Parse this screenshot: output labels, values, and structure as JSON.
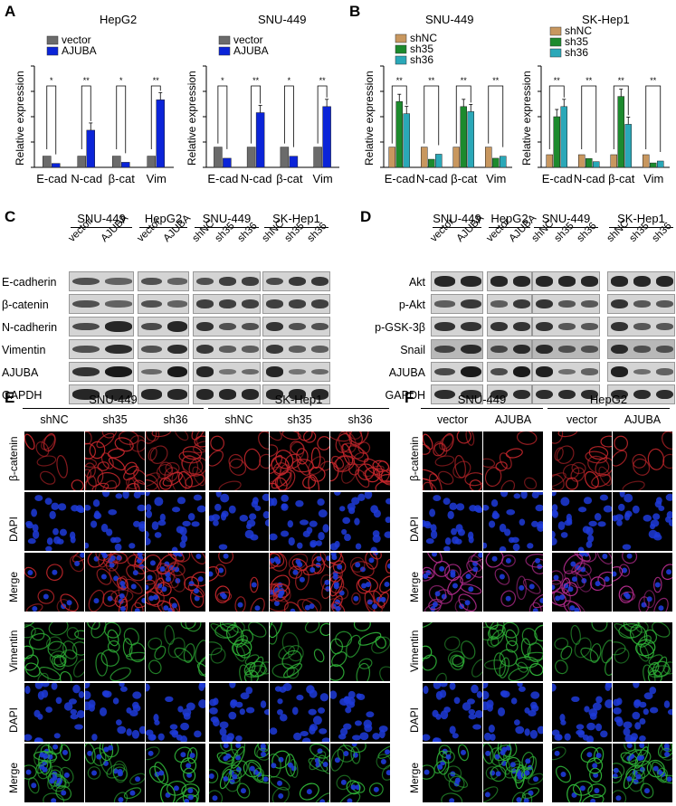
{
  "panels": {
    "A": "A",
    "B": "B",
    "C": "C",
    "D": "D",
    "E": "E",
    "F": "F"
  },
  "colors": {
    "vector": "#6b6b6b",
    "ajuba": "#0b24d8",
    "shnc": "#c8975f",
    "sh35": "#1c8a2d",
    "sh36": "#2aa8b8",
    "red": "#c2262b",
    "blue": "#1e3bd9",
    "green": "#2fb338"
  },
  "panel_a": {
    "ylabel": "Relative expression",
    "legend": [
      "vector",
      "AJUBA"
    ],
    "categories": [
      "E-cad",
      "N-cad",
      "β-cat",
      "Vim"
    ],
    "sig": [
      "*",
      "**",
      "*",
      "**"
    ]
  },
  "panel_b": {
    "ylabel": "Relative expression",
    "legend": [
      "shNC",
      "sh35",
      "sh36"
    ],
    "categories": [
      "E-cad",
      "N-cad",
      "β-cat",
      "Vim"
    ],
    "sig": [
      "**",
      "**",
      "**",
      "**"
    ]
  },
  "chart_data": [
    {
      "type": "bar",
      "title": "HepG2",
      "ylabel": "Relative expression",
      "categories": [
        "E-cad",
        "N-cad",
        "β-cat",
        "Vim"
      ],
      "series": [
        {
          "name": "vector",
          "values": [
            1,
            1,
            1,
            1
          ]
        },
        {
          "name": "AJUBA",
          "values": [
            0.35,
            3.3,
            0.45,
            6.0
          ]
        }
      ],
      "ylim": [
        0,
        9
      ]
    },
    {
      "type": "bar",
      "title": "SNU-449",
      "ylabel": "Relative expression",
      "categories": [
        "E-cad",
        "N-cad",
        "β-cat",
        "Vim"
      ],
      "series": [
        {
          "name": "vector",
          "values": [
            1,
            1,
            1,
            1
          ]
        },
        {
          "name": "AJUBA",
          "values": [
            0.45,
            2.7,
            0.55,
            3.0
          ]
        }
      ],
      "ylim": [
        0,
        5
      ]
    },
    {
      "type": "bar",
      "title": "SNU-449",
      "ylabel": "Relative expression",
      "categories": [
        "E-cad",
        "N-cad",
        "β-cat",
        "Vim"
      ],
      "series": [
        {
          "name": "shNC",
          "values": [
            1,
            1,
            1,
            1
          ]
        },
        {
          "name": "sh35",
          "values": [
            3.25,
            0.4,
            3.0,
            0.45
          ]
        },
        {
          "name": "sh36",
          "values": [
            2.65,
            0.65,
            2.75,
            0.55
          ]
        }
      ],
      "ylim": [
        0,
        5
      ]
    },
    {
      "type": "bar",
      "title": "SK-Hep1",
      "ylabel": "Relative expression",
      "categories": [
        "E-cad",
        "N-cad",
        "β-cat",
        "Vim"
      ],
      "series": [
        {
          "name": "shNC",
          "values": [
            1,
            1,
            1,
            1
          ]
        },
        {
          "name": "sh35",
          "values": [
            4.0,
            0.7,
            5.6,
            0.35
          ]
        },
        {
          "name": "sh36",
          "values": [
            4.8,
            0.45,
            3.4,
            0.5
          ]
        }
      ],
      "ylim": [
        0,
        8
      ]
    }
  ],
  "panel_c": {
    "groups": [
      "SNU-449",
      "HepG2",
      "SNU-449",
      "SK-Hep1"
    ],
    "lanes": [
      [
        "vector",
        "AJUBA"
      ],
      [
        "vector",
        "AJUBA"
      ],
      [
        "shNC",
        "sh35",
        "sh36"
      ],
      [
        "shNC",
        "sh35",
        "sh36"
      ]
    ],
    "rows": [
      "E-cadherin",
      "β-catenin",
      "N-cadherin",
      "Vimentin",
      "AJUBA",
      "GAPDH"
    ]
  },
  "panel_d": {
    "groups": [
      "SNU-449",
      "HepG2",
      "SNU-449",
      "SK-Hep1"
    ],
    "lanes": [
      [
        "vector",
        "AJUBA"
      ],
      [
        "vector",
        "AJUBA"
      ],
      [
        "shNC",
        "sh35",
        "sh36"
      ],
      [
        "shNC",
        "sh35",
        "sh36"
      ]
    ],
    "rows": [
      "Akt",
      "p-Akt",
      "p-GSK-3β",
      "Snail",
      "AJUBA",
      "GAPDH"
    ]
  },
  "panel_e": {
    "groups": [
      "SNU-449",
      "SK-Hep1"
    ],
    "cols": [
      "shNC",
      "sh35",
      "sh36",
      "shNC",
      "sh35",
      "sh36"
    ],
    "rows": [
      "β-catenin",
      "DAPI",
      "Merge",
      "Vimentin",
      "DAPI",
      "Merge"
    ]
  },
  "panel_f": {
    "groups": [
      "SNU-449",
      "HepG2"
    ],
    "cols": [
      "vector",
      "AJUBA",
      "vector",
      "AJUBA"
    ],
    "rows": [
      "β-catenin",
      "DAPI",
      "Merge",
      "Vimentin",
      "DAPI",
      "Merge"
    ]
  }
}
